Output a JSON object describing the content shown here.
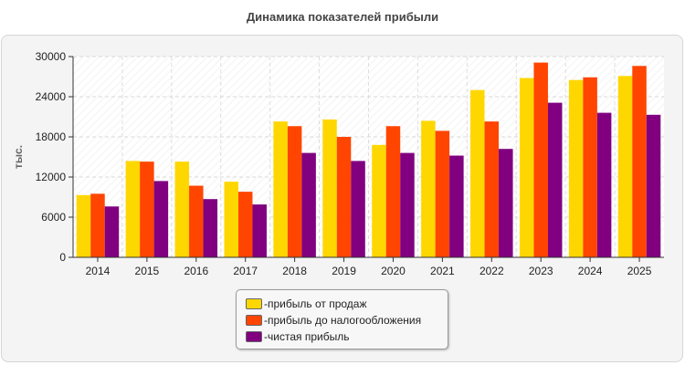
{
  "title": "Динамика показателей прибыли",
  "legend_prefix": "- ",
  "chart_data": {
    "type": "bar",
    "title": "Динамика показателей прибыли",
    "xlabel": "",
    "ylabel": "тыс.",
    "ylim": [
      0,
      30000
    ],
    "yticks": [
      0,
      6000,
      12000,
      18000,
      24000,
      30000
    ],
    "grid": true,
    "legend_position": "bottom",
    "categories": [
      "2014",
      "2015",
      "2016",
      "2017",
      "2018",
      "2019",
      "2020",
      "2021",
      "2022",
      "2023",
      "2024",
      "2025"
    ],
    "series": [
      {
        "name": "прибыль от продаж",
        "color": "#ffd700",
        "values": [
          9300,
          14400,
          14300,
          11300,
          20300,
          20600,
          16800,
          20400,
          25000,
          26800,
          26500,
          27100
        ]
      },
      {
        "name": "прибыль до налогообложения",
        "color": "#ff4500",
        "values": [
          9500,
          14300,
          10700,
          9800,
          19600,
          18000,
          19600,
          18900,
          20300,
          29100,
          26900,
          28600
        ]
      },
      {
        "name": "чистая прибыль",
        "color": "#800080",
        "values": [
          7600,
          11400,
          8700,
          7900,
          15600,
          14400,
          15600,
          15200,
          16200,
          23100,
          21600,
          21300
        ]
      }
    ]
  }
}
